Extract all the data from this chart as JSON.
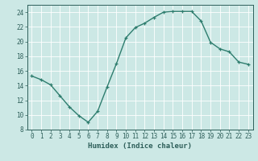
{
  "x": [
    0,
    1,
    2,
    3,
    4,
    5,
    6,
    7,
    8,
    9,
    10,
    11,
    12,
    13,
    14,
    15,
    16,
    17,
    18,
    19,
    20,
    21,
    22,
    23
  ],
  "y": [
    15.3,
    14.8,
    14.1,
    12.6,
    11.1,
    9.9,
    9.0,
    10.5,
    13.8,
    17.0,
    20.5,
    21.9,
    22.5,
    23.3,
    24.0,
    24.1,
    24.1,
    24.1,
    22.8,
    19.9,
    19.0,
    18.6,
    17.2,
    16.9
  ],
  "line_color": "#2e7d6e",
  "marker": "+",
  "background_color": "#cce8e5",
  "grid_color": "#ffffff",
  "xlabel": "Humidex (Indice chaleur)",
  "ylim": [
    8,
    25
  ],
  "xlim": [
    -0.5,
    23.5
  ],
  "yticks": [
    8,
    10,
    12,
    14,
    16,
    18,
    20,
    22,
    24
  ],
  "xticks": [
    0,
    1,
    2,
    3,
    4,
    5,
    6,
    7,
    8,
    9,
    10,
    11,
    12,
    13,
    14,
    15,
    16,
    17,
    18,
    19,
    20,
    21,
    22,
    23
  ],
  "font_color": "#2e5f5a",
  "linewidth": 1.0,
  "markersize": 3.5,
  "tick_fontsize": 5.5,
  "xlabel_fontsize": 6.5
}
